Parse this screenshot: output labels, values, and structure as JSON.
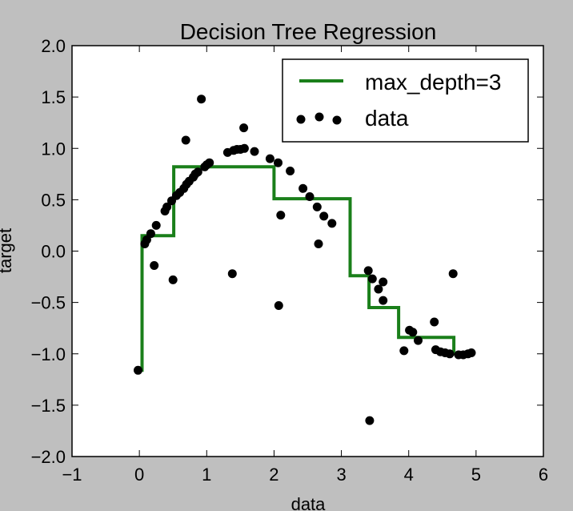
{
  "chart_data": {
    "type": "scatter",
    "title": "Decision Tree Regression",
    "xlabel": "data",
    "ylabel": "target",
    "xlim": [
      -1,
      6
    ],
    "ylim": [
      -2.0,
      2.0
    ],
    "xticks": [
      "−1",
      "0",
      "1",
      "2",
      "3",
      "4",
      "5",
      "6"
    ],
    "xtick_values": [
      -1,
      0,
      1,
      2,
      3,
      4,
      5,
      6
    ],
    "yticks": [
      "−2.0",
      "−1.5",
      "−1.0",
      "−0.5",
      "0.0",
      "0.5",
      "1.0",
      "1.5",
      "2.0"
    ],
    "ytick_values": [
      -2.0,
      -1.5,
      -1.0,
      -0.5,
      0.0,
      0.5,
      1.0,
      1.5,
      2.0
    ],
    "grid": false,
    "legend_position": "top-right",
    "series": [
      {
        "name": "max_depth=3",
        "kind": "step-line",
        "color": "#1a7f1a",
        "x": [
          0.0,
          0.04,
          0.04,
          0.51,
          0.51,
          2.0,
          2.0,
          3.13,
          3.13,
          3.41,
          3.41,
          3.85,
          3.85,
          4.67,
          4.67,
          4.97
        ],
        "y": [
          -1.16,
          -1.16,
          0.15,
          0.15,
          0.82,
          0.82,
          0.51,
          0.51,
          -0.24,
          -0.24,
          -0.55,
          -0.55,
          -0.84,
          -0.84,
          -1.0,
          -1.0
        ]
      },
      {
        "name": "data",
        "kind": "scatter",
        "color": "#000000",
        "points": [
          [
            -0.02,
            -1.16
          ],
          [
            0.08,
            0.07
          ],
          [
            0.11,
            0.11
          ],
          [
            0.17,
            0.17
          ],
          [
            0.22,
            -0.14
          ],
          [
            0.25,
            0.25
          ],
          [
            0.38,
            0.39
          ],
          [
            0.41,
            0.43
          ],
          [
            0.48,
            0.49
          ],
          [
            0.5,
            -0.28
          ],
          [
            0.55,
            0.54
          ],
          [
            0.6,
            0.57
          ],
          [
            0.66,
            0.61
          ],
          [
            0.7,
            0.65
          ],
          [
            0.74,
            0.68
          ],
          [
            0.8,
            0.72
          ],
          [
            0.83,
            0.75
          ],
          [
            0.87,
            0.77
          ],
          [
            0.92,
            1.48
          ],
          [
            0.97,
            0.82
          ],
          [
            1.0,
            0.84
          ],
          [
            1.04,
            0.86
          ],
          [
            0.69,
            1.08
          ],
          [
            1.31,
            0.96
          ],
          [
            1.4,
            0.98
          ],
          [
            1.38,
            -0.22
          ],
          [
            1.45,
            0.99
          ],
          [
            1.5,
            0.99
          ],
          [
            1.56,
            1.0
          ],
          [
            1.55,
            1.2
          ],
          [
            1.71,
            0.97
          ],
          [
            1.94,
            0.9
          ],
          [
            2.06,
            0.86
          ],
          [
            2.07,
            -0.53
          ],
          [
            2.1,
            0.35
          ],
          [
            2.24,
            0.78
          ],
          [
            2.43,
            0.61
          ],
          [
            2.53,
            0.53
          ],
          [
            2.64,
            0.43
          ],
          [
            2.66,
            0.07
          ],
          [
            2.74,
            0.34
          ],
          [
            2.86,
            0.27
          ],
          [
            3.4,
            -0.19
          ],
          [
            3.46,
            -0.27
          ],
          [
            3.42,
            -1.65
          ],
          [
            3.55,
            -0.37
          ],
          [
            3.62,
            -0.48
          ],
          [
            3.62,
            -0.3
          ],
          [
            3.93,
            -0.97
          ],
          [
            4.01,
            -0.77
          ],
          [
            4.06,
            -0.79
          ],
          [
            4.14,
            -0.87
          ],
          [
            4.38,
            -0.69
          ],
          [
            4.4,
            -0.96
          ],
          [
            4.47,
            -0.98
          ],
          [
            4.54,
            -0.99
          ],
          [
            4.61,
            -1.0
          ],
          [
            4.66,
            -0.22
          ],
          [
            4.74,
            -1.01
          ],
          [
            4.81,
            -1.01
          ],
          [
            4.88,
            -1.0
          ],
          [
            4.93,
            -0.99
          ]
        ]
      }
    ]
  }
}
